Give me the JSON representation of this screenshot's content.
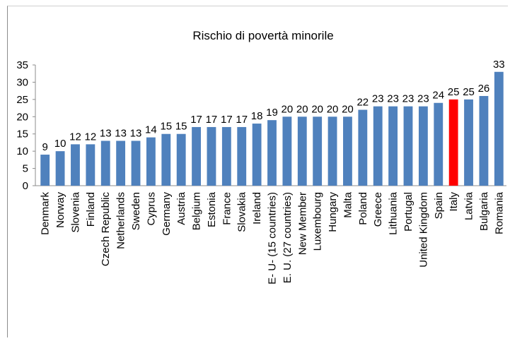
{
  "chart_data": {
    "type": "bar",
    "title": "Rischio di povertà minorile",
    "xlabel": "",
    "ylabel": "",
    "ylim": [
      0,
      35
    ],
    "yticks": [
      "0",
      "5",
      "10",
      "15",
      "20",
      "25",
      "30",
      "35"
    ],
    "grid": false,
    "legend": "none",
    "categories": [
      "Denmark",
      "Norway",
      "Slovenia",
      "Finland",
      "Czech Republic",
      "Netherlands",
      "Sweden",
      "Cyprus",
      "Germany",
      "Austria",
      "Belgium",
      "Estonia",
      "France",
      "Slovakia",
      "Ireland",
      "E- U- (15 countries)",
      "E. U. (27 countries)",
      "New Member",
      "Luxembourg",
      "Hungary",
      "Malta",
      "Poland",
      "Greece",
      "Lithuania",
      "Portugal",
      "United Kingdom",
      "Spain",
      "Italy",
      "Latvia",
      "Bulgaria",
      "Romania"
    ],
    "values": [
      9,
      10,
      12,
      12,
      13,
      13,
      13,
      14,
      15,
      15,
      17,
      17,
      17,
      17,
      18,
      19,
      20,
      20,
      20,
      20,
      20,
      22,
      23,
      23,
      23,
      23,
      24,
      25,
      25,
      26,
      33
    ],
    "bar_color": "#4f81bd",
    "highlight_category": "Italy",
    "highlight_color": "#ff0000"
  }
}
